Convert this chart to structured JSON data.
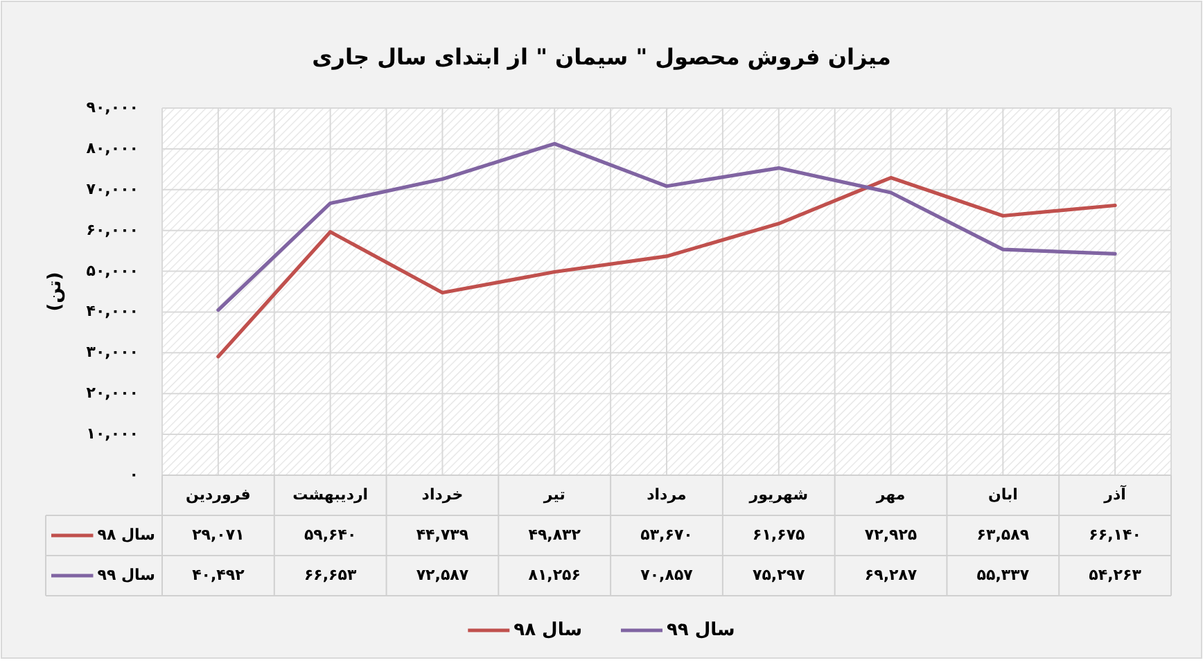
{
  "chart_data": {
    "type": "line",
    "title": "میزان فروش محصول \" سیمان \" از ابتدای سال جاری",
    "ylabel": "(تن)",
    "categories": [
      "فروردین",
      "اردیبهشت",
      "خرداد",
      "تیر",
      "مرداد",
      "شهریور",
      "مهر",
      "ابان",
      "آذر"
    ],
    "series": [
      {
        "name": "سال ۹۸",
        "color": "#c0504d",
        "values": [
          29071,
          59640,
          44739,
          49832,
          53670,
          61675,
          72925,
          63589,
          66140
        ],
        "value_labels": [
          "۲۹,۰۷۱",
          "۵۹,۶۴۰",
          "۴۴,۷۳۹",
          "۴۹,۸۳۲",
          "۵۳,۶۷۰",
          "۶۱,۶۷۵",
          "۷۲,۹۲۵",
          "۶۳,۵۸۹",
          "۶۶,۱۴۰"
        ]
      },
      {
        "name": "سال ۹۹",
        "color": "#8064a2",
        "values": [
          40492,
          66653,
          72587,
          81256,
          70857,
          75297,
          69287,
          55337,
          54263
        ],
        "value_labels": [
          "۴۰,۴۹۲",
          "۶۶,۶۵۳",
          "۷۲,۵۸۷",
          "۸۱,۲۵۶",
          "۷۰,۸۵۷",
          "۷۵,۲۹۷",
          "۶۹,۲۸۷",
          "۵۵,۳۳۷",
          "۵۴,۲۶۳"
        ]
      }
    ],
    "ylim": [
      0,
      90000
    ],
    "yticks": [
      {
        "value": 0,
        "label": "۰"
      },
      {
        "value": 10000,
        "label": "۱۰,۰۰۰"
      },
      {
        "value": 20000,
        "label": "۲۰,۰۰۰"
      },
      {
        "value": 30000,
        "label": "۳۰,۰۰۰"
      },
      {
        "value": 40000,
        "label": "۴۰,۰۰۰"
      },
      {
        "value": 50000,
        "label": "۵۰,۰۰۰"
      },
      {
        "value": 60000,
        "label": "۶۰,۰۰۰"
      },
      {
        "value": 70000,
        "label": "۷۰,۰۰۰"
      },
      {
        "value": 80000,
        "label": "۸۰,۰۰۰"
      },
      {
        "value": 90000,
        "label": "۹۰,۰۰۰"
      }
    ],
    "grid": true,
    "legend": "bottom"
  }
}
